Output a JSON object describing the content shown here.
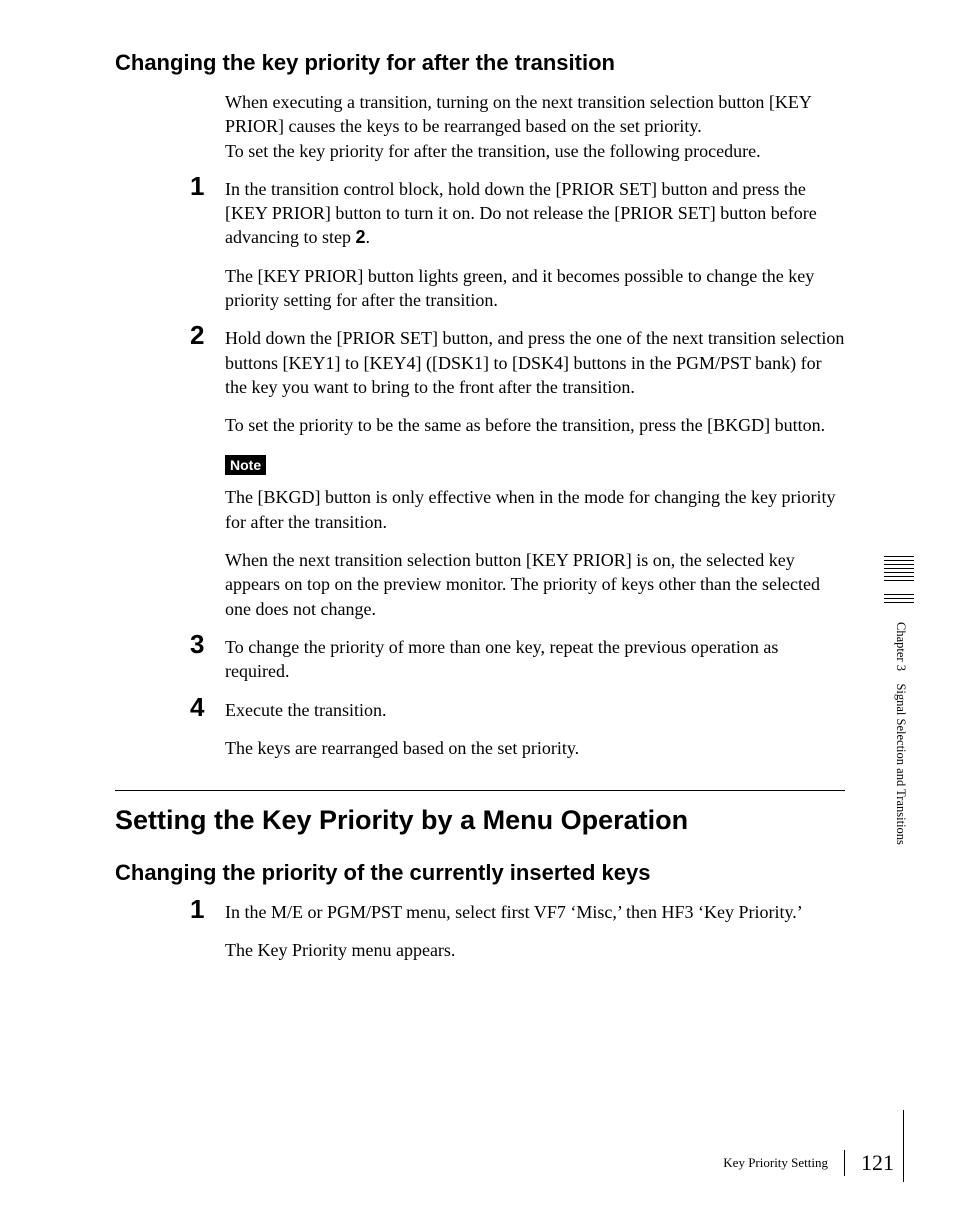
{
  "heading1": "Changing the key priority for after the transition",
  "intro": {
    "p1": "When executing a transition, turning on the next transition selection button [KEY PRIOR] causes the keys to be rearranged based on the set priority.",
    "p2": "To set the key priority for after the transition, use the following procedure."
  },
  "step1": {
    "num": "1",
    "p1a": "In the transition control block, hold down the [PRIOR SET] button and press the [KEY PRIOR] button to turn it on. Do not release the [PRIOR SET] button before advancing to step ",
    "p1b": "2",
    "p1c": ".",
    "p2": "The [KEY PRIOR] button lights green, and it becomes possible to change the key priority setting for after the transition."
  },
  "step2": {
    "num": "2",
    "p1": "Hold down the [PRIOR SET] button, and press the one of the next transition selection buttons [KEY1] to [KEY4] ([DSK1] to [DSK4] buttons in the PGM/PST bank) for the key you want to bring to the front after the transition.",
    "p2": "To set the priority to be the same as before the transition, press the [BKGD] button.",
    "noteLabel": "Note",
    "note": "The [BKGD] button is only effective when in the mode for changing the key priority for after the transition.",
    "p3": "When the next transition selection button [KEY PRIOR] is on, the selected key appears on top on the preview monitor. The priority of keys other than the selected one does not change."
  },
  "step3": {
    "num": "3",
    "p1": "To change the priority of more than one key, repeat the previous operation as required."
  },
  "step4": {
    "num": "4",
    "p1": "Execute the transition.",
    "p2": "The keys are rearranged based on the set priority."
  },
  "heading2": "Setting the Key Priority by a Menu Operation",
  "heading3": "Changing the priority of the currently inserted keys",
  "stepB1": {
    "num": "1",
    "p1": "In the M/E or PGM/PST menu, select first VF7 ‘Misc,’ then HF3 ‘Key Priority.’",
    "p2": "The Key Priority menu appears."
  },
  "sideLabel": "Chapter 3 Signal Selection and Transitions",
  "footer": {
    "title": "Key Priority Setting",
    "page": "121"
  },
  "colors": {
    "text": "#000000",
    "bg": "#ffffff",
    "noteBg": "#000000",
    "noteText": "#ffffff"
  },
  "fonts": {
    "body": "Times New Roman",
    "bodySizePt": 14,
    "heading": "Arial",
    "h2SizePt": 20,
    "h3SizePt": 16,
    "stepNumSizePt": 20,
    "footerTitleSizePt": 10,
    "footerPageSizePt": 16,
    "sideLabelSizePt": 9.5
  }
}
